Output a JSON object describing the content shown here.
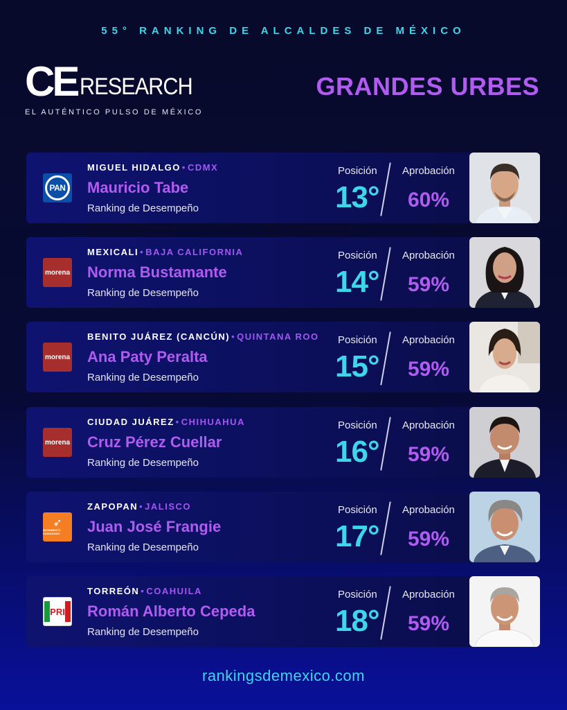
{
  "header": {
    "title": "55° RANKING DE ALCALDES DE MÉXICO",
    "logo_ce": "CE",
    "logo_research": "RESEARCH",
    "logo_sub": "EL AUTÉNTICO PULSO DE MÉXICO",
    "category": "GRANDES URBES"
  },
  "labels": {
    "position": "Posición",
    "approval": "Aprobación",
    "ranking": "Ranking de Desempeño"
  },
  "colors": {
    "cyan": "#3fd5ea",
    "purple": "#b15cf0",
    "background": "#080a2b"
  },
  "mayors": [
    {
      "city": "MIGUEL HIDALGO",
      "state": "CDMX",
      "name": "Mauricio Tabe",
      "party": "PAN",
      "party_text": "PAN",
      "position": "13°",
      "approval": "60%",
      "approval_value": 60
    },
    {
      "city": "MEXICALI",
      "state": "BAJA CALIFORNIA",
      "name": "Norma Bustamante",
      "party": "morena",
      "party_text": "morena",
      "position": "14°",
      "approval": "59%",
      "approval_value": 59
    },
    {
      "city": "BENITO JUÁREZ (CANCÚN)",
      "state": "QUINTANA ROO",
      "name": "Ana Paty Peralta",
      "party": "morena",
      "party_text": "morena",
      "position": "15°",
      "approval": "59%",
      "approval_value": 59
    },
    {
      "city": "CIUDAD JUÁREZ",
      "state": "CHIHUAHUA",
      "name": "Cruz Pérez Cuellar",
      "party": "morena",
      "party_text": "morena",
      "position": "16°",
      "approval": "59%",
      "approval_value": 59
    },
    {
      "city": "ZAPOPAN",
      "state": "JALISCO",
      "name": "Juan José Frangie",
      "party": "Movimiento Ciudadano",
      "party_text": "MOVIMIENTO CIUDADANO",
      "position": "17°",
      "approval": "59%",
      "approval_value": 59
    },
    {
      "city": "TORREÓN",
      "state": "COAHUILA",
      "name": "Román Alberto Cepeda",
      "party": "PRI",
      "party_text": "PRI",
      "position": "18°",
      "approval": "59%",
      "approval_value": 59
    }
  ],
  "footer": {
    "url": "rankingsdemexico.com"
  }
}
